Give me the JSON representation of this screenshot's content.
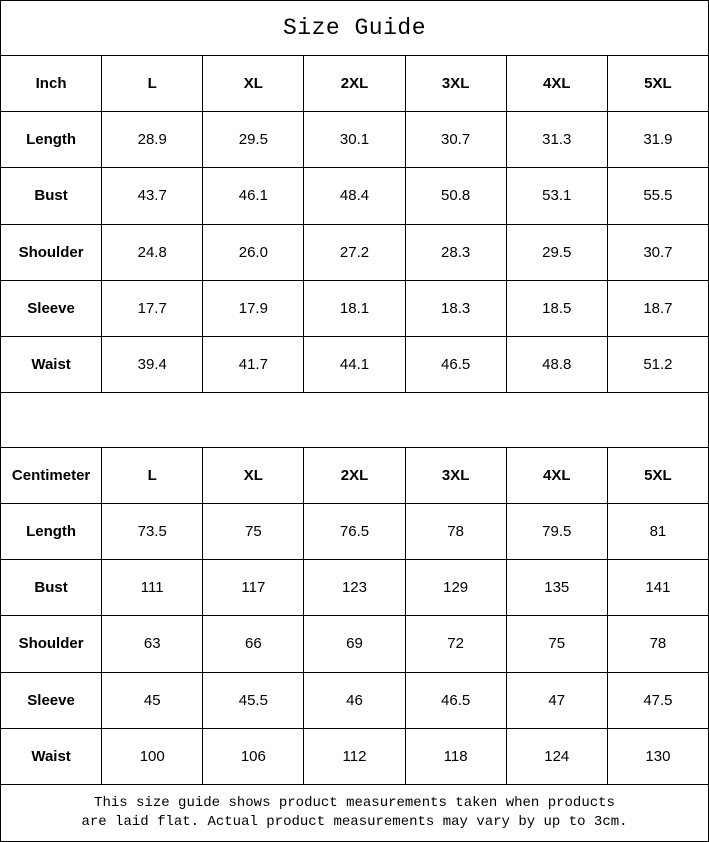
{
  "title": "Size Guide",
  "tables": [
    {
      "unit_label": "Inch",
      "sizes": [
        "L",
        "XL",
        "2XL",
        "3XL",
        "4XL",
        "5XL"
      ],
      "rows": [
        {
          "label": "Length",
          "values": [
            "28.9",
            "29.5",
            "30.1",
            "30.7",
            "31.3",
            "31.9"
          ]
        },
        {
          "label": "Bust",
          "values": [
            "43.7",
            "46.1",
            "48.4",
            "50.8",
            "53.1",
            "55.5"
          ]
        },
        {
          "label": "Shoulder",
          "values": [
            "24.8",
            "26.0",
            "27.2",
            "28.3",
            "29.5",
            "30.7"
          ]
        },
        {
          "label": "Sleeve",
          "values": [
            "17.7",
            "17.9",
            "18.1",
            "18.3",
            "18.5",
            "18.7"
          ]
        },
        {
          "label": "Waist",
          "values": [
            "39.4",
            "41.7",
            "44.1",
            "46.5",
            "48.8",
            "51.2"
          ]
        }
      ]
    },
    {
      "unit_label": "Centimeter",
      "sizes": [
        "L",
        "XL",
        "2XL",
        "3XL",
        "4XL",
        "5XL"
      ],
      "rows": [
        {
          "label": "Length",
          "values": [
            "73.5",
            "75",
            "76.5",
            "78",
            "79.5",
            "81"
          ]
        },
        {
          "label": "Bust",
          "values": [
            "111",
            "117",
            "123",
            "129",
            "135",
            "141"
          ]
        },
        {
          "label": "Shoulder",
          "values": [
            "63",
            "66",
            "69",
            "72",
            "75",
            "78"
          ]
        },
        {
          "label": "Sleeve",
          "values": [
            "45",
            "45.5",
            "46",
            "46.5",
            "47",
            "47.5"
          ]
        },
        {
          "label": "Waist",
          "values": [
            "100",
            "106",
            "112",
            "118",
            "124",
            "130"
          ]
        }
      ]
    }
  ],
  "footer": {
    "line1": "This size guide shows product measurements taken when products",
    "line2": "are laid flat. Actual product measurements may vary by up to 3cm."
  },
  "colors": {
    "border": "#000000",
    "background": "#ffffff",
    "text": "#000000"
  }
}
